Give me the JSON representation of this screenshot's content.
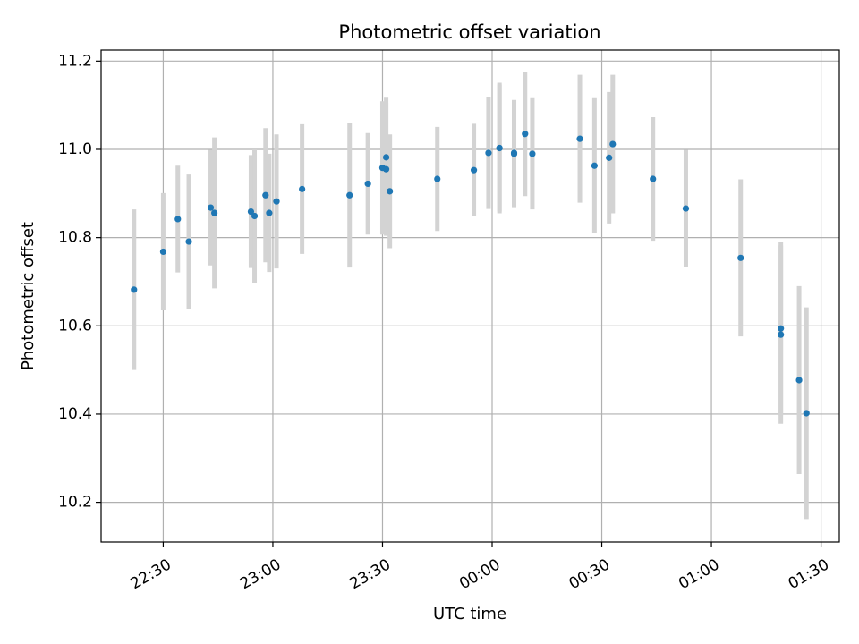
{
  "chart_data": {
    "type": "scatter",
    "title": "Photometric offset variation",
    "xlabel": "UTC time",
    "ylabel": "Photometric offset",
    "x_axis_kind": "time",
    "xlim": [
      "22:13",
      "01:35"
    ],
    "ylim": [
      10.11,
      11.225
    ],
    "x_ticks": [
      "22:30",
      "23:00",
      "23:30",
      "00:00",
      "00:30",
      "01:00",
      "01:30"
    ],
    "y_ticks": [
      10.2,
      10.4,
      10.6,
      10.8,
      11.0,
      11.2
    ],
    "y_tick_labels": [
      "10.2",
      "10.4",
      "10.6",
      "10.8",
      "11.0",
      "11.2"
    ],
    "grid": true,
    "colors": {
      "points": "#1f77b4",
      "errorbars": "#d3d3d3",
      "grid": "#b0b0b0",
      "axes": "#000000"
    },
    "series": [
      {
        "points": [
          {
            "x": "22:22",
            "y": 10.682,
            "err": 0.182
          },
          {
            "x": "22:30",
            "y": 10.768,
            "err": 0.133
          },
          {
            "x": "22:34",
            "y": 10.842,
            "err": 0.121
          },
          {
            "x": "22:37",
            "y": 10.791,
            "err": 0.152
          },
          {
            "x": "22:43",
            "y": 10.868,
            "err": 0.131
          },
          {
            "x": "22:44",
            "y": 10.856,
            "err": 0.171
          },
          {
            "x": "22:54",
            "y": 10.859,
            "err": 0.128
          },
          {
            "x": "22:55",
            "y": 10.849,
            "err": 0.151
          },
          {
            "x": "22:58",
            "y": 10.896,
            "err": 0.152
          },
          {
            "x": "22:59",
            "y": 10.856,
            "err": 0.134
          },
          {
            "x": "23:01",
            "y": 10.882,
            "err": 0.152
          },
          {
            "x": "23:08",
            "y": 10.91,
            "err": 0.147
          },
          {
            "x": "23:21",
            "y": 10.896,
            "err": 0.164
          },
          {
            "x": "23:26",
            "y": 10.922,
            "err": 0.115
          },
          {
            "x": "23:30",
            "y": 10.958,
            "err": 0.151
          },
          {
            "x": "23:31",
            "y": 10.955,
            "err": 0.151
          },
          {
            "x": "23:31",
            "y": 10.982,
            "err": 0.135
          },
          {
            "x": "23:32",
            "y": 10.905,
            "err": 0.129
          },
          {
            "x": "23:45",
            "y": 10.933,
            "err": 0.118
          },
          {
            "x": "23:55",
            "y": 10.953,
            "err": 0.105
          },
          {
            "x": "23:59",
            "y": 10.992,
            "err": 0.127
          },
          {
            "x": "00:02",
            "y": 11.003,
            "err": 0.148
          },
          {
            "x": "00:02",
            "y": 11.003,
            "err": 0.144
          },
          {
            "x": "00:06",
            "y": 10.99,
            "err": 0.121
          },
          {
            "x": "00:06",
            "y": 10.992,
            "err": 0.12
          },
          {
            "x": "00:09",
            "y": 11.035,
            "err": 0.141
          },
          {
            "x": "00:11",
            "y": 10.99,
            "err": 0.126
          },
          {
            "x": "00:24",
            "y": 11.024,
            "err": 0.145
          },
          {
            "x": "00:28",
            "y": 10.963,
            "err": 0.153
          },
          {
            "x": "00:32",
            "y": 10.981,
            "err": 0.149
          },
          {
            "x": "00:33",
            "y": 11.012,
            "err": 0.157
          },
          {
            "x": "00:44",
            "y": 10.933,
            "err": 0.14
          },
          {
            "x": "00:53",
            "y": 10.866,
            "err": 0.133
          },
          {
            "x": "01:08",
            "y": 10.754,
            "err": 0.178
          },
          {
            "x": "01:19",
            "y": 10.594,
            "err": 0.197
          },
          {
            "x": "01:19",
            "y": 10.58,
            "err": 0.202
          },
          {
            "x": "01:24",
            "y": 10.477,
            "err": 0.213
          },
          {
            "x": "01:26",
            "y": 10.402,
            "err": 0.24
          }
        ]
      }
    ]
  }
}
